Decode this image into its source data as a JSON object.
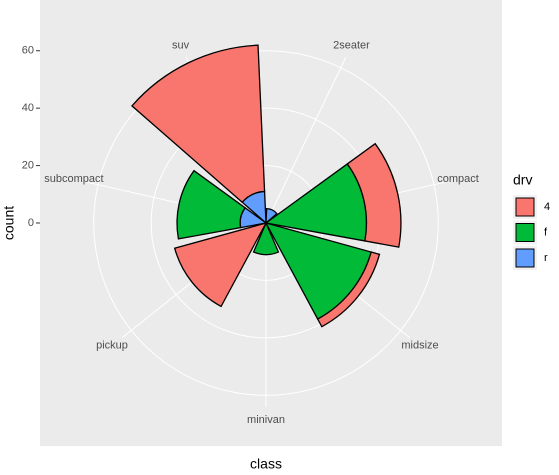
{
  "chart_data": {
    "type": "polar_stacked_bar",
    "x_label": "class",
    "y_label": "count",
    "legend_title": "drv",
    "categories": [
      "2seater",
      "compact",
      "midsize",
      "minivan",
      "pickup",
      "subcompact",
      "suv"
    ],
    "series": [
      {
        "name": "4",
        "color": "#F8766D",
        "values": [
          null,
          12,
          3,
          null,
          33,
          null,
          51
        ]
      },
      {
        "name": "f",
        "color": "#00BA38",
        "values": [
          null,
          35,
          38,
          11,
          null,
          22,
          null
        ]
      },
      {
        "name": "r",
        "color": "#619CFF",
        "values": [
          5,
          null,
          null,
          null,
          null,
          9,
          11
        ]
      }
    ],
    "ylim": [
      0,
      62
    ],
    "yticks": [
      0,
      20,
      40,
      60
    ],
    "grid": true
  }
}
